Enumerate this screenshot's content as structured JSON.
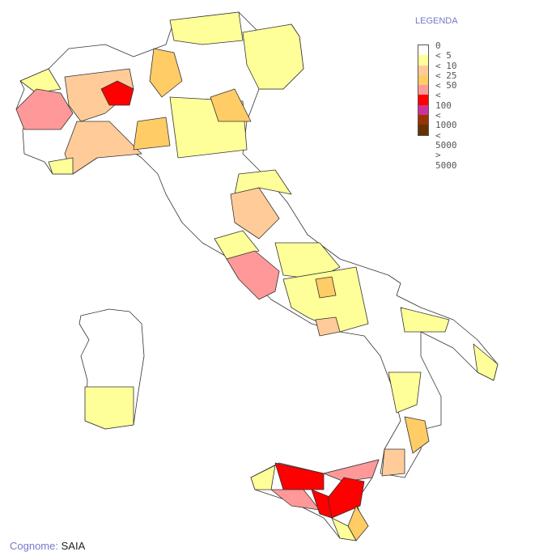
{
  "legend": {
    "title": "LEGENDA",
    "items": [
      {
        "label": "0",
        "color": "#ffffff"
      },
      {
        "label": "< 5",
        "color": "#ffff99"
      },
      {
        "label": "< 10",
        "color": "#ffcc99"
      },
      {
        "label": "< 25",
        "color": "#ffcc66"
      },
      {
        "label": "< 50",
        "color": "#ff9999"
      },
      {
        "label": "< 100",
        "color": "#ff0000"
      },
      {
        "label": "< 1000",
        "color": "#cc3399"
      },
      {
        "label": "< 5000",
        "color": "#993300"
      },
      {
        "label": "> 5000",
        "color": "#663300"
      }
    ]
  },
  "footer": {
    "key": "Cognome:",
    "value": "SAIA"
  }
}
